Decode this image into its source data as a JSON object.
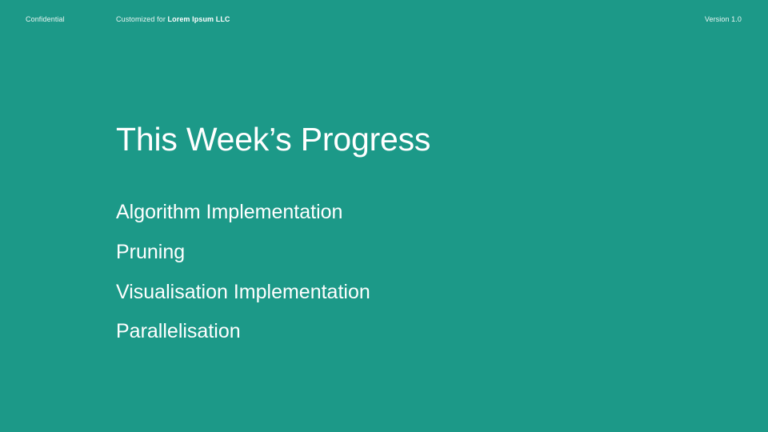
{
  "header": {
    "confidential": "Confidential",
    "customized_prefix": "Customized for",
    "client_name": "Lorem Ipsum LLC",
    "version": "Version 1.0"
  },
  "slide": {
    "title": "This Week’s Progress",
    "items": [
      {
        "label": "Algorithm Implementation"
      },
      {
        "label": "Pruning"
      },
      {
        "label": "Visualisation Implementation"
      },
      {
        "label": "Parallelisation"
      }
    ]
  },
  "colors": {
    "background": "#1c9988",
    "text": "#ffffff"
  }
}
